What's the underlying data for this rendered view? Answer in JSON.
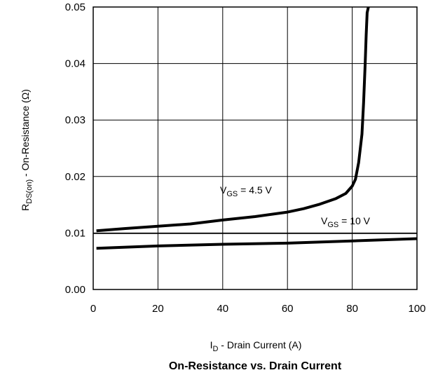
{
  "chart_data": {
    "type": "line",
    "title": "On-Resistance vs. Drain Current",
    "xlabel": {
      "main": "I",
      "sub": "D",
      "rest": " - Drain Current (A)"
    },
    "ylabel": {
      "main": "R",
      "sub": "DS(on)",
      "rest": "  - On-Resistance (Ω)"
    },
    "xlim": [
      0,
      100
    ],
    "ylim": [
      0.0,
      0.05
    ],
    "xticks": [
      "0",
      "20",
      "40",
      "60",
      "80",
      "100"
    ],
    "yticks": [
      "0.00",
      "0.01",
      "0.02",
      "0.03",
      "0.04",
      "0.05"
    ],
    "grid": true,
    "series": [
      {
        "name": {
          "main": "V",
          "sub": "GS",
          "rest": " = 4.5 V"
        },
        "x": [
          1,
          10,
          20,
          30,
          40,
          50,
          60,
          65,
          70,
          75,
          78,
          80,
          81,
          82,
          83,
          83.5,
          84,
          84.3,
          84.6,
          85
        ],
        "y": [
          0.0104,
          0.0108,
          0.0112,
          0.0116,
          0.0123,
          0.0129,
          0.0137,
          0.0143,
          0.0151,
          0.0161,
          0.017,
          0.0183,
          0.0195,
          0.0225,
          0.0275,
          0.033,
          0.04,
          0.045,
          0.049,
          0.05
        ]
      },
      {
        "name": {
          "main": "V",
          "sub": "GS",
          "rest": " = 10 V"
        },
        "x": [
          1,
          20,
          40,
          60,
          80,
          100
        ],
        "y": [
          0.0073,
          0.0077,
          0.008,
          0.0082,
          0.0086,
          0.009
        ]
      }
    ],
    "reference_line_y": 0.0099
  }
}
